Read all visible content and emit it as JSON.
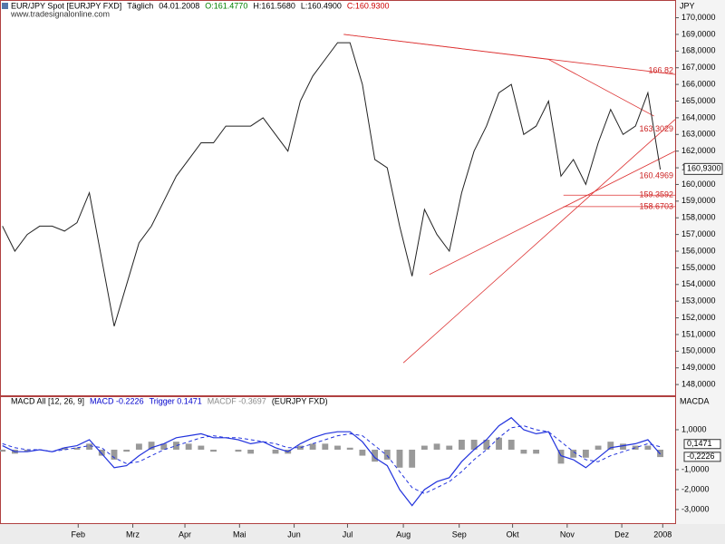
{
  "header": {
    "parts": [
      {
        "text": "EUR/JPY Spot [EURJPY FXD]",
        "color": "#000000"
      },
      {
        "text": "Täglich",
        "color": "#000000"
      },
      {
        "text": "04.01.2008",
        "color": "#000000"
      },
      {
        "text": "O:161.4770",
        "color": "#008000"
      },
      {
        "text": "H:161.5680",
        "color": "#000000"
      },
      {
        "text": "L:160.4900",
        "color": "#000000"
      },
      {
        "text": "C:160.9300",
        "color": "#cc0000"
      }
    ],
    "source": "www.tradesignalonline.com"
  },
  "chart_data": [
    {
      "type": "line",
      "axis_title": "JPY",
      "x": [
        0,
        1,
        2,
        3,
        4,
        5,
        6,
        7,
        8,
        9,
        10,
        11,
        12,
        13,
        14,
        15,
        16,
        17,
        18,
        19,
        20,
        21,
        22,
        23,
        24,
        25,
        26,
        27,
        28,
        29,
        30,
        31,
        32,
        33,
        34,
        35,
        36,
        37,
        38,
        39,
        40,
        41,
        42,
        43,
        44,
        45,
        46,
        47,
        48,
        49,
        50,
        51,
        52,
        53
      ],
      "series": [
        {
          "name": "EUR/JPY Spot",
          "color": "#222222",
          "values": [
            157.5,
            156,
            157,
            157.5,
            157.5,
            157.2,
            157.7,
            159.5,
            155.5,
            151.5,
            154,
            156.5,
            157.5,
            159,
            160.5,
            161.5,
            162.5,
            162.5,
            163.5,
            163.5,
            163.5,
            164,
            163,
            162,
            165,
            166.5,
            167.5,
            168.5,
            168.5,
            166,
            161.5,
            161,
            157.5,
            154.5,
            158.5,
            157,
            156,
            159.5,
            162,
            163.5,
            165.5,
            166,
            163,
            163.5,
            165,
            160.5,
            161.5,
            160,
            162.5,
            164.5,
            163,
            163.5,
            165.5,
            160.9
          ]
        }
      ],
      "xlim": [
        -0.2,
        54.2
      ],
      "ylim": [
        147.3,
        170.9
      ],
      "yticks": [
        {
          "value": 148,
          "label": "148,0000"
        },
        {
          "value": 149,
          "label": "149,0000"
        },
        {
          "value": 150,
          "label": "150,0000"
        },
        {
          "value": 151,
          "label": "151,0000"
        },
        {
          "value": 152,
          "label": "152,0000"
        },
        {
          "value": 153,
          "label": "153,0000"
        },
        {
          "value": 154,
          "label": "154,0000"
        },
        {
          "value": 155,
          "label": "155,0000"
        },
        {
          "value": 156,
          "label": "156,0000"
        },
        {
          "value": 157,
          "label": "157,0000"
        },
        {
          "value": 158,
          "label": "158,0000"
        },
        {
          "value": 159,
          "label": "159,0000"
        },
        {
          "value": 160,
          "label": "160,0000"
        },
        {
          "value": 161,
          "label": "161,0000"
        },
        {
          "value": 162,
          "label": "162,0000"
        },
        {
          "value": 163,
          "label": "163,0000"
        },
        {
          "value": 164,
          "label": "164,0000"
        },
        {
          "value": 165,
          "label": "165,0000"
        },
        {
          "value": 166,
          "label": "166,0000"
        },
        {
          "value": 167,
          "label": "167,0000"
        },
        {
          "value": 168,
          "label": "168,0000"
        },
        {
          "value": 169,
          "label": "169,0000"
        },
        {
          "value": 170,
          "label": "170,0000"
        }
      ],
      "last_value": {
        "value": 160.93,
        "label": "160,9300"
      },
      "trendlines": [
        {
          "x": [
            27.5,
            54.2
          ],
          "y": [
            169,
            166.6
          ]
        },
        {
          "x": [
            32.3,
            54.2
          ],
          "y": [
            149.3,
            163.9
          ]
        },
        {
          "x": [
            34.4,
            54.2
          ],
          "y": [
            154.6,
            162.0
          ]
        },
        {
          "x": [
            44,
            52.5
          ],
          "y": [
            167.5,
            164.1
          ]
        },
        {
          "x": [
            45.2,
            54.2
          ],
          "y": [
            159.36,
            159.36
          ]
        },
        {
          "x": [
            45.2,
            54.2
          ],
          "y": [
            158.67,
            158.67
          ]
        },
        {
          "x": [
            27.5,
            44
          ],
          "y": [
            169,
            167.5
          ]
        }
      ],
      "level_labels": [
        {
          "value": 166.82,
          "label": "166.82"
        },
        {
          "value": 163.3029,
          "label": "163.3029"
        },
        {
          "value": 160.4969,
          "label": "160.4969"
        },
        {
          "value": 159.3592,
          "label": "159.3592"
        },
        {
          "value": 158.6703,
          "label": "158.6703"
        }
      ]
    },
    {
      "type": "macd",
      "axis_title": "MACDA",
      "title_parts": [
        {
          "text": "MACD All [12, 26, 9]",
          "color": "#000000"
        },
        {
          "text": "MACD -0.2226",
          "color": "#0000cc"
        },
        {
          "text": "Trigger 0.1471",
          "color": "#0000cc"
        },
        {
          "text": "MACDF -0.3697",
          "color": "#888888"
        },
        {
          "text": "(EURJPY FXD)",
          "color": "#000000"
        }
      ],
      "x": [
        0,
        1,
        2,
        3,
        4,
        5,
        6,
        7,
        8,
        9,
        10,
        11,
        12,
        13,
        14,
        15,
        16,
        17,
        18,
        19,
        20,
        21,
        22,
        23,
        24,
        25,
        26,
        27,
        28,
        29,
        30,
        31,
        32,
        33,
        34,
        35,
        36,
        37,
        38,
        39,
        40,
        41,
        42,
        43,
        44,
        45,
        46,
        47,
        48,
        49,
        50,
        51,
        52,
        53
      ],
      "series": [
        {
          "name": "MACD",
          "color": "#2233dd",
          "values": [
            0.2,
            -0.1,
            -0.1,
            0,
            -0.1,
            0.1,
            0.2,
            0.5,
            -0.2,
            -0.9,
            -0.8,
            -0.3,
            0.1,
            0.3,
            0.6,
            0.7,
            0.8,
            0.6,
            0.6,
            0.5,
            0.3,
            0.4,
            0.1,
            -0.1,
            0.3,
            0.6,
            0.8,
            0.9,
            0.9,
            0.4,
            -0.4,
            -0.8,
            -2.0,
            -2.8,
            -2.0,
            -1.6,
            -1.4,
            -0.6,
            0,
            0.5,
            1.2,
            1.6,
            1.0,
            0.8,
            0.9,
            -0.3,
            -0.5,
            -0.9,
            -0.4,
            0.1,
            0.2,
            0.3,
            0.5,
            -0.2226
          ]
        },
        {
          "name": "Trigger",
          "color": "#2233dd",
          "values": [
            0.3,
            0.1,
            0,
            0,
            -0.1,
            0,
            0.1,
            0.2,
            0.1,
            -0.4,
            -0.7,
            -0.6,
            -0.3,
            0,
            0.2,
            0.4,
            0.6,
            0.7,
            0.6,
            0.6,
            0.5,
            0.4,
            0.3,
            0.1,
            0.1,
            0.3,
            0.5,
            0.7,
            0.8,
            0.7,
            0.2,
            -0.3,
            -1.1,
            -1.9,
            -2.2,
            -1.9,
            -1.6,
            -1.1,
            -0.5,
            0,
            0.6,
            1.1,
            1.2,
            1.0,
            0.9,
            0.4,
            -0.1,
            -0.5,
            -0.6,
            -0.3,
            -0.1,
            0.1,
            0.3,
            0.1471
          ]
        },
        {
          "name": "MACDF",
          "color": "#999999",
          "values": [
            -0.1,
            -0.2,
            -0.1,
            0,
            0,
            0.1,
            0.1,
            0.3,
            -0.3,
            -0.5,
            -0.1,
            0.3,
            0.4,
            0.3,
            0.4,
            0.3,
            0.2,
            -0.1,
            0,
            -0.1,
            -0.2,
            0,
            -0.2,
            -0.2,
            0.2,
            0.3,
            0.3,
            0.2,
            0.1,
            -0.3,
            -0.6,
            -0.5,
            -0.9,
            -0.9,
            0.2,
            0.3,
            0.2,
            0.5,
            0.5,
            0.5,
            0.6,
            0.5,
            -0.2,
            -0.2,
            0,
            -0.7,
            -0.4,
            -0.4,
            0.2,
            0.4,
            0.3,
            0.2,
            0.2,
            -0.3697
          ]
        }
      ],
      "xlim": [
        -0.2,
        54.2
      ],
      "ylim": [
        -3.59,
        2.27
      ],
      "yticks": [
        {
          "value": 1,
          "label": "1,0000"
        },
        {
          "value": -1,
          "label": "-1,0000"
        },
        {
          "value": -2,
          "label": "-2,0000"
        },
        {
          "value": -3,
          "label": "-3,0000"
        }
      ],
      "last_values": [
        {
          "value": 0.1471,
          "label": "0,1471"
        },
        {
          "value": -0.2226,
          "label": "-0,2226"
        }
      ],
      "xticks": [
        {
          "value": 6.1,
          "label": "Feb"
        },
        {
          "value": 10.5,
          "label": "Mrz"
        },
        {
          "value": 14.7,
          "label": "Apr"
        },
        {
          "value": 19.1,
          "label": "Mai"
        },
        {
          "value": 23.5,
          "label": "Jun"
        },
        {
          "value": 27.8,
          "label": "Jul"
        },
        {
          "value": 32.3,
          "label": "Aug"
        },
        {
          "value": 36.8,
          "label": "Sep"
        },
        {
          "value": 41.1,
          "label": "Okt"
        },
        {
          "value": 45.5,
          "label": "Nov"
        },
        {
          "value": 49.9,
          "label": "Dez"
        },
        {
          "value": 53.2,
          "label": "2008"
        }
      ]
    }
  ]
}
